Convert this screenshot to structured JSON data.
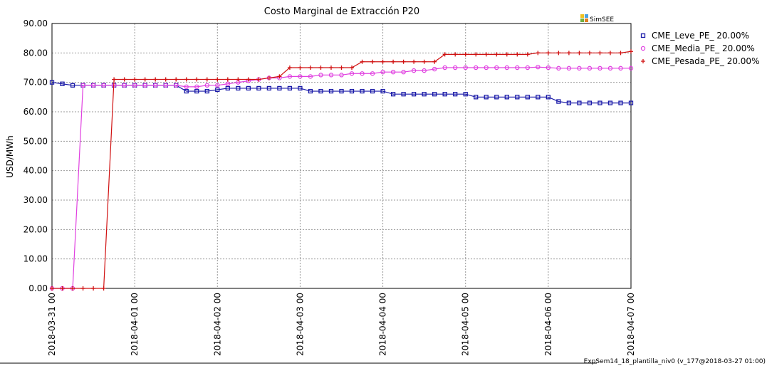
{
  "chart_data": {
    "type": "line",
    "title": "Costo Marginal de Extracción P20",
    "ylabel": "USD/MWh",
    "logo": "SimSEE",
    "footer": "ExpSem14_18_plantilla_niv0 (v_177@2018-03-27 01:00)",
    "grid": true,
    "legend": "right",
    "x": [
      "2018-03-31 00",
      "2018-03-31 03",
      "2018-03-31 06",
      "2018-03-31 09",
      "2018-03-31 12",
      "2018-03-31 15",
      "2018-03-31 18",
      "2018-03-31 21",
      "2018-04-01 00",
      "2018-04-01 03",
      "2018-04-01 06",
      "2018-04-01 09",
      "2018-04-01 12",
      "2018-04-01 15",
      "2018-04-01 18",
      "2018-04-01 21",
      "2018-04-02 00",
      "2018-04-02 03",
      "2018-04-02 06",
      "2018-04-02 09",
      "2018-04-02 12",
      "2018-04-02 15",
      "2018-04-02 18",
      "2018-04-02 21",
      "2018-04-03 00",
      "2018-04-03 03",
      "2018-04-03 06",
      "2018-04-03 09",
      "2018-04-03 12",
      "2018-04-03 15",
      "2018-04-03 18",
      "2018-04-03 21",
      "2018-04-04 00",
      "2018-04-04 03",
      "2018-04-04 06",
      "2018-04-04 09",
      "2018-04-04 12",
      "2018-04-04 15",
      "2018-04-04 18",
      "2018-04-04 21",
      "2018-04-05 00",
      "2018-04-05 03",
      "2018-04-05 06",
      "2018-04-05 09",
      "2018-04-05 12",
      "2018-04-05 15",
      "2018-04-05 18",
      "2018-04-05 21",
      "2018-04-06 00",
      "2018-04-06 03",
      "2018-04-06 06",
      "2018-04-06 09",
      "2018-04-06 12",
      "2018-04-06 15",
      "2018-04-06 18",
      "2018-04-06 21",
      "2018-04-07 00"
    ],
    "xlim": [
      "2018-03-31 00",
      "2018-04-07 00"
    ],
    "xticks": [
      "2018-03-31 00",
      "2018-04-01 00",
      "2018-04-02 00",
      "2018-04-03 00",
      "2018-04-04 00",
      "2018-04-05 00",
      "2018-04-06 00",
      "2018-04-07 00"
    ],
    "ylim": [
      0,
      90
    ],
    "yticks": [
      {
        "value": 0,
        "label": "0.00"
      },
      {
        "value": 10,
        "label": "10.00"
      },
      {
        "value": 20,
        "label": "20.00"
      },
      {
        "value": 30,
        "label": "30.00"
      },
      {
        "value": 40,
        "label": "40.00"
      },
      {
        "value": 50,
        "label": "50.00"
      },
      {
        "value": 60,
        "label": "60.00"
      },
      {
        "value": 70,
        "label": "70.00"
      },
      {
        "value": 80,
        "label": "80.00"
      },
      {
        "value": 90,
        "label": "90.00"
      }
    ],
    "series": [
      {
        "name": "CME_Leve_PE_ 20.00%",
        "color": "#1a1aa8",
        "marker": "square",
        "values": [
          70,
          69.5,
          69,
          69,
          69,
          69,
          69,
          69,
          69,
          69,
          69,
          69,
          69,
          67,
          67,
          67,
          67.5,
          68,
          68,
          68,
          68,
          68,
          68,
          68,
          68,
          67,
          67,
          67,
          67,
          67,
          67,
          67,
          67,
          66,
          66,
          66,
          66,
          66,
          66,
          66,
          66,
          65,
          65,
          65,
          65,
          65,
          65,
          65,
          65,
          63.5,
          63,
          63,
          63,
          63,
          63,
          63,
          63
        ]
      },
      {
        "name": "CME_Media_PE_ 20.00%",
        "color": "#e040e0",
        "marker": "circle",
        "values": [
          0,
          0,
          0,
          69,
          69,
          69,
          69,
          69,
          69,
          69,
          69,
          69,
          69,
          68.5,
          68.5,
          69,
          69,
          69.5,
          70,
          70.5,
          71,
          71.5,
          71.5,
          72,
          72,
          72,
          72.5,
          72.5,
          72.5,
          73,
          73,
          73,
          73.5,
          73.5,
          73.5,
          74,
          74,
          74.5,
          75,
          75,
          75,
          75,
          75,
          75,
          75,
          75,
          75,
          75.2,
          75,
          74.8,
          74.8,
          74.8,
          74.8,
          74.8,
          74.8,
          74.8,
          74.8
        ]
      },
      {
        "name": "CME_Pesada_PE_ 20.00%",
        "color": "#d01010",
        "marker": "plus",
        "values": [
          0,
          0,
          0,
          0,
          0,
          0,
          71,
          71,
          71,
          71,
          71,
          71,
          71,
          71,
          71,
          71,
          71,
          71,
          71,
          71,
          71,
          71.5,
          72,
          75,
          75,
          75,
          75,
          75,
          75,
          75,
          77,
          77,
          77,
          77,
          77,
          77,
          77,
          77,
          79.5,
          79.5,
          79.5,
          79.5,
          79.5,
          79.5,
          79.5,
          79.5,
          79.5,
          80,
          80,
          80,
          80,
          80,
          80,
          80,
          80,
          80,
          80.5
        ]
      }
    ]
  }
}
